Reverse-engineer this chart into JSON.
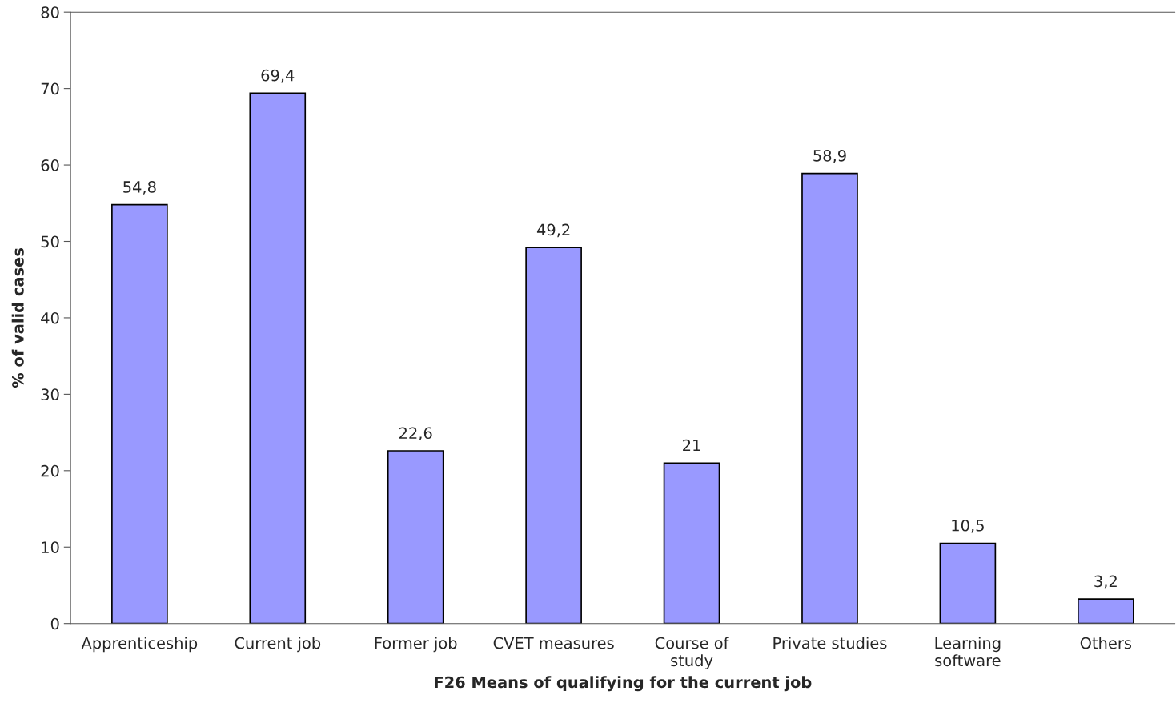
{
  "chart_data": {
    "type": "bar",
    "xlabel": "F26 Means of qualifying for the current job",
    "ylabel": "% of valid cases",
    "categories": [
      "Apprenticeship",
      "Current job",
      "Former job",
      "CVET measures",
      "Course of\nstudy",
      "Private studies",
      "Learning\nsoftware",
      "Others"
    ],
    "values": [
      54.8,
      69.4,
      22.6,
      49.2,
      21,
      58.9,
      10.5,
      3.2
    ],
    "value_labels": [
      "54,8",
      "69,4",
      "22,6",
      "49,2",
      "21",
      "58,9",
      "10,5",
      "3,2"
    ],
    "color": "#9999ff",
    "ylim": [
      0,
      80
    ],
    "yticks": [
      0,
      10,
      20,
      30,
      40,
      50,
      60,
      70,
      80
    ],
    "grid": false,
    "legend": false
  }
}
